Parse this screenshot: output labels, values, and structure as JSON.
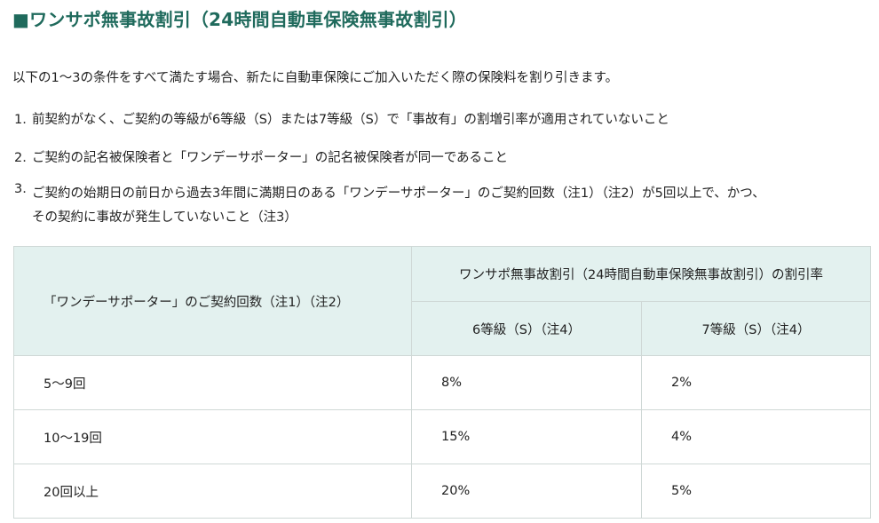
{
  "heading": "■ワンサポ無事故割引（24時間自動車保険無事故割引）",
  "intro": "以下の1〜3の条件をすべて満たす場合、新たに自動車保険にご加入いただく際の保険料を割り引きます。",
  "conditions": [
    {
      "num": "1.",
      "lines": [
        "前契約がなく、ご契約の等級が6等級（S）または7等級（S）で「事故有」の割増引率が適用されていないこと"
      ]
    },
    {
      "num": "2.",
      "lines": [
        "ご契約の記名被保険者と「ワンデーサポーター」の記名被保険者が同一であること"
      ]
    },
    {
      "num": "3.",
      "lines": [
        "ご契約の始期日の前日から過去3年間に満期日のある「ワンデーサポーター」のご契約回数（注1）（注2）が5回以上で、かつ、",
        "その契約に事故が発生していないこと（注3）"
      ]
    }
  ],
  "table": {
    "header_count": "「ワンデーサポーター」のご契約回数（注1）（注2）",
    "header_rate": "ワンサポ無事故割引（24時間自動車保険無事故割引）の割引率",
    "header_6": "6等級（S）（注4）",
    "header_7": "7等級（S）（注4）",
    "rows": [
      {
        "count": "5〜9回",
        "six": "8%",
        "seven": "2%"
      },
      {
        "count": "10〜19回",
        "six": "15%",
        "seven": "4%"
      },
      {
        "count": "20回以上",
        "six": "20%",
        "seven": "5%"
      }
    ]
  }
}
